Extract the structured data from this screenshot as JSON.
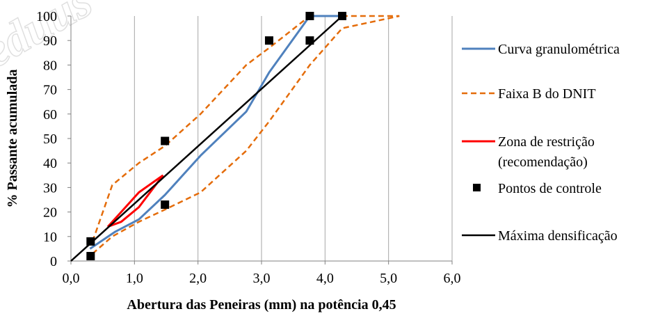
{
  "chart_data": {
    "type": "line",
    "xlabel": "Abertura das Peneiras (mm) na potência 0,45",
    "ylabel": "% Passante acumulada",
    "xlim": [
      0,
      6
    ],
    "ylim": [
      0,
      100
    ],
    "x_ticks": [
      "0,0",
      "1,0",
      "2,0",
      "3,0",
      "4,0",
      "5,0",
      "6,0"
    ],
    "y_ticks": [
      "0",
      "10",
      "20",
      "30",
      "40",
      "50",
      "60",
      "70",
      "80",
      "90",
      "100"
    ],
    "grid": "vertical",
    "legend_position": "right",
    "series": [
      {
        "name": "Curva granulométrica",
        "style": "solid",
        "color": "#4f81bd",
        "points": [
          [
            0.3,
            5
          ],
          [
            0.7,
            12
          ],
          [
            1.07,
            17
          ],
          [
            1.48,
            27
          ],
          [
            2.04,
            43
          ],
          [
            2.76,
            61
          ],
          [
            3.12,
            77
          ],
          [
            3.76,
            100
          ],
          [
            4.27,
            100
          ]
        ]
      },
      {
        "name": "Faixa B do DNIT",
        "style": "dashed",
        "color": "#e46c0a",
        "lines": [
          [
            [
              0.34,
              8
            ],
            [
              0.65,
              31
            ],
            [
              1.07,
              40
            ],
            [
              1.48,
              47
            ],
            [
              2.04,
              60
            ],
            [
              2.76,
              80
            ],
            [
              3.12,
              87
            ],
            [
              3.76,
              100
            ],
            [
              5.17,
              100
            ]
          ],
          [
            [
              0.34,
              3
            ],
            [
              0.65,
              10
            ],
            [
              1.07,
              16
            ],
            [
              1.48,
              21
            ],
            [
              2.04,
              28
            ],
            [
              2.76,
              45
            ],
            [
              3.12,
              57
            ],
            [
              3.76,
              80
            ],
            [
              4.27,
              95
            ],
            [
              5.17,
              100
            ]
          ]
        ]
      },
      {
        "name": "Zona de restrição (recomendação)",
        "legend_lines": [
          "Zona de restrição",
          "(recomendação)"
        ],
        "style": "solid",
        "color": "#ff0000",
        "lines": [
          [
            [
              0.58,
              14
            ],
            [
              0.79,
              20
            ],
            [
              1.07,
              28
            ],
            [
              1.45,
              35
            ]
          ],
          [
            [
              0.58,
              14
            ],
            [
              0.79,
              16
            ],
            [
              1.07,
              22
            ],
            [
              1.45,
              35
            ]
          ]
        ]
      },
      {
        "name": "Pontos de controle",
        "style": "markers",
        "color": "#000000",
        "points": [
          [
            0.31,
            2
          ],
          [
            0.31,
            8
          ],
          [
            1.48,
            23
          ],
          [
            1.48,
            49
          ],
          [
            3.12,
            90
          ],
          [
            3.76,
            90
          ],
          [
            3.76,
            100
          ],
          [
            4.27,
            100
          ]
        ]
      },
      {
        "name": "Máxima densificação",
        "style": "solid",
        "color": "#000000",
        "points": [
          [
            0,
            0
          ],
          [
            4.27,
            100
          ]
        ]
      }
    ]
  }
}
